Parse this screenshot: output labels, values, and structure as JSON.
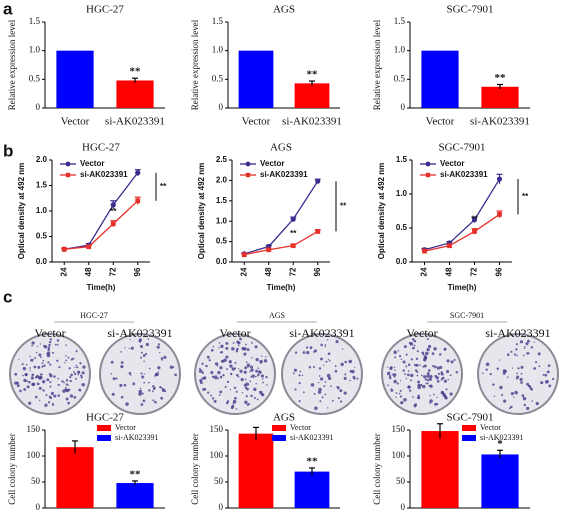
{
  "panel_labels": [
    "a",
    "b",
    "c"
  ],
  "dishes": [
    {
      "title": "HGC-27",
      "labels": [
        "Vector",
        "si-AK023391"
      ]
    },
    {
      "title": "AGS",
      "labels": [
        "Vector",
        "si-AK023391"
      ]
    },
    {
      "title": "SGC-7901",
      "labels": [
        "Vector",
        "si-AK023391"
      ]
    }
  ],
  "chart_data": [
    {
      "type": "bar",
      "title": "HGC-27",
      "y_label": "Relative expression level",
      "categories": [
        "Vector",
        "si-AK023391"
      ],
      "values": [
        1.0,
        0.48
      ],
      "errors": [
        0,
        0.04
      ],
      "colors": [
        "#0000ff",
        "#ff0000"
      ],
      "ylim": [
        0,
        1.5
      ],
      "yticks": [
        0,
        0.5,
        {
          "value": 1,
          "label": "1.0"
        },
        1.5
      ],
      "annotations": [
        "**"
      ]
    },
    {
      "type": "bar",
      "title": "AGS",
      "y_label": "Relative expression level",
      "categories": [
        "Vector",
        "si-AK023391"
      ],
      "values": [
        1.0,
        0.43
      ],
      "errors": [
        0,
        0.04
      ],
      "colors": [
        "#0000ff",
        "#ff0000"
      ],
      "ylim": [
        0,
        1.5
      ],
      "yticks": [
        0,
        0.5,
        {
          "value": 1,
          "label": "1.0"
        },
        1.5
      ],
      "annotations": [
        "**"
      ]
    },
    {
      "type": "bar",
      "title": "SGC-7901",
      "y_label": "Relative expression level",
      "categories": [
        "Vector",
        "si-AK023391"
      ],
      "values": [
        1.0,
        0.37
      ],
      "errors": [
        0,
        0.04
      ],
      "colors": [
        "#0000ff",
        "#ff0000"
      ],
      "ylim": [
        0,
        1.5
      ],
      "yticks": [
        0,
        0.5,
        {
          "value": 1,
          "label": "1.0"
        },
        1.5
      ],
      "annotations": [
        "**"
      ]
    },
    {
      "type": "line",
      "title": "HGC-27",
      "x_label": "Time(h)",
      "y_label": "Optical density at 492 nm",
      "x": [
        24,
        48,
        72,
        96
      ],
      "xlim": [
        12,
        108
      ],
      "xticks": [
        24,
        48,
        72,
        96
      ],
      "ylim": [
        0,
        2
      ],
      "yticks": [
        {
          "value": 0,
          "label": "0.0"
        },
        0.5,
        {
          "value": 1,
          "label": "1.0"
        },
        1.5,
        {
          "value": 2,
          "label": "2.0"
        }
      ],
      "legend": "upper left",
      "series": [
        {
          "name": "Vector",
          "color": "#3b2d8f",
          "values": [
            0.25,
            0.33,
            1.12,
            1.75
          ],
          "errors": [
            0.02,
            0.03,
            0.08,
            0.06
          ]
        },
        {
          "name": "si-AK023391",
          "color": "#e8302a",
          "values": [
            0.25,
            0.3,
            0.75,
            1.2
          ],
          "errors": [
            0.02,
            0.02,
            0.06,
            0.07
          ]
        }
      ],
      "annotations": [
        "**",
        "**"
      ]
    },
    {
      "type": "line",
      "title": "AGS",
      "x_label": "Time(h)",
      "y_label": "Optical density at 492 nm",
      "x": [
        24,
        48,
        72,
        96
      ],
      "xlim": [
        12,
        108
      ],
      "xticks": [
        24,
        48,
        72,
        96
      ],
      "ylim": [
        0,
        2.5
      ],
      "yticks": [
        {
          "value": 0,
          "label": "0.0"
        },
        0.5,
        {
          "value": 1,
          "label": "1.0"
        },
        1.5,
        {
          "value": 2,
          "label": "2.0"
        },
        2.5
      ],
      "legend": "upper left",
      "series": [
        {
          "name": "Vector",
          "color": "#3b2d8f",
          "values": [
            0.2,
            0.38,
            1.05,
            1.98
          ],
          "errors": [
            0.02,
            0.03,
            0.05,
            0.05
          ]
        },
        {
          "name": "si-AK023391",
          "color": "#e8302a",
          "values": [
            0.18,
            0.3,
            0.4,
            0.75
          ],
          "errors": [
            0.02,
            0.02,
            0.03,
            0.03
          ]
        }
      ],
      "annotations": [
        "**",
        "**"
      ]
    },
    {
      "type": "line",
      "title": "SGC-7901",
      "x_label": "Time(h)",
      "y_label": "Optical density at 492 nm",
      "x": [
        24,
        48,
        72,
        96
      ],
      "xlim": [
        12,
        108
      ],
      "xticks": [
        24,
        48,
        72,
        96
      ],
      "ylim": [
        0,
        1.5
      ],
      "yticks": [
        {
          "value": 0,
          "label": "0.0"
        },
        0.5,
        {
          "value": 1,
          "label": "1.0"
        },
        1.5
      ],
      "legend": "upper left",
      "series": [
        {
          "name": "Vector",
          "color": "#3b2d8f",
          "values": [
            0.18,
            0.28,
            0.62,
            1.22
          ],
          "errors": [
            0.02,
            0.02,
            0.04,
            0.07
          ]
        },
        {
          "name": "si-AK023391",
          "color": "#e8302a",
          "values": [
            0.16,
            0.24,
            0.45,
            0.7
          ],
          "errors": [
            0.02,
            0.02,
            0.04,
            0.05
          ]
        }
      ],
      "annotations": [
        "**",
        "**"
      ]
    },
    {
      "type": "bar",
      "title": "HGC-27",
      "y_label": "Cell colony number",
      "ylim": [
        0,
        150
      ],
      "yticks": [
        0,
        50,
        100,
        150
      ],
      "legend": "upper right",
      "series": [
        {
          "name": "Vector",
          "color": "#ff0000",
          "values": [
            117
          ],
          "errors": [
            12
          ]
        },
        {
          "name": "si-AK023391",
          "color": "#0000ff",
          "values": [
            48
          ],
          "errors": [
            4
          ]
        }
      ],
      "annotations": [
        "**"
      ]
    },
    {
      "type": "bar",
      "title": "AGS",
      "y_label": "Cell colony number",
      "ylim": [
        0,
        150
      ],
      "yticks": [
        0,
        50,
        100,
        150
      ],
      "legend": "upper right",
      "series": [
        {
          "name": "Vector",
          "color": "#ff0000",
          "values": [
            143
          ],
          "errors": [
            12
          ]
        },
        {
          "name": "si-AK023391",
          "color": "#0000ff",
          "values": [
            70
          ],
          "errors": [
            7
          ]
        }
      ],
      "annotations": [
        "**"
      ]
    },
    {
      "type": "bar",
      "title": "SGC-7901",
      "y_label": "Cell colony number",
      "ylim": [
        0,
        150
      ],
      "yticks": [
        0,
        50,
        100,
        150
      ],
      "legend": "upper right",
      "series": [
        {
          "name": "Vector",
          "color": "#ff0000",
          "values": [
            148
          ],
          "errors": [
            14
          ]
        },
        {
          "name": "si-AK023391",
          "color": "#0000ff",
          "values": [
            103
          ],
          "errors": [
            8
          ]
        }
      ],
      "annotations": [
        "*"
      ]
    }
  ]
}
